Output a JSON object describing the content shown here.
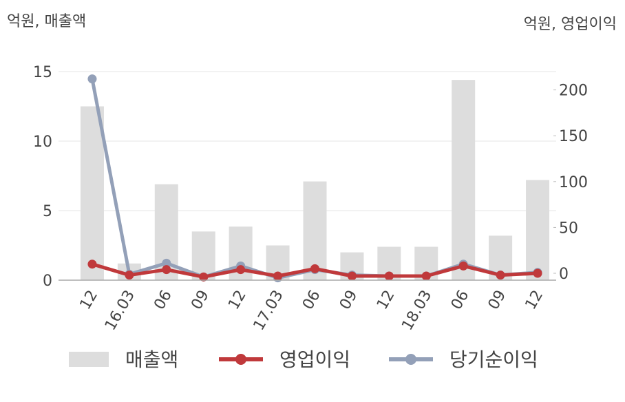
{
  "chart_data": {
    "type": "bar-line",
    "y_unit": "억원, 매출액",
    "y2_unit": "억원, 영업이익",
    "categories": [
      "12",
      "16.03",
      "06",
      "09",
      "12",
      "17.03",
      "06",
      "09",
      "12",
      "18.03",
      "06",
      "09",
      "12"
    ],
    "series": [
      {
        "name": "매출액",
        "type": "bar",
        "color": "#dddddd",
        "values": [
          12.5,
          1.2,
          6.9,
          3.5,
          3.85,
          2.5,
          7.1,
          2.0,
          2.4,
          2.4,
          14.4,
          3.2,
          7.2
        ]
      },
      {
        "name": "영업이익",
        "type": "line",
        "axis": "y2",
        "color": "#c0393b",
        "values": [
          10,
          -2,
          4,
          -4,
          4,
          -3,
          5,
          -3,
          -3,
          -3,
          8,
          -2,
          0
        ]
      },
      {
        "name": "당기순이익",
        "type": "line",
        "axis": "y2",
        "color": "#93a0b8",
        "values": [
          212,
          -1,
          11,
          -4,
          8,
          -5,
          4,
          -2,
          -3,
          -3,
          10,
          -2,
          1
        ]
      }
    ],
    "ylim": [
      0,
      15
    ],
    "yticks": [
      0,
      5,
      10,
      15
    ],
    "y2lim": [
      -7.5,
      220
    ],
    "y2ticks": [
      0,
      50,
      100,
      150,
      200
    ],
    "grid": true
  }
}
